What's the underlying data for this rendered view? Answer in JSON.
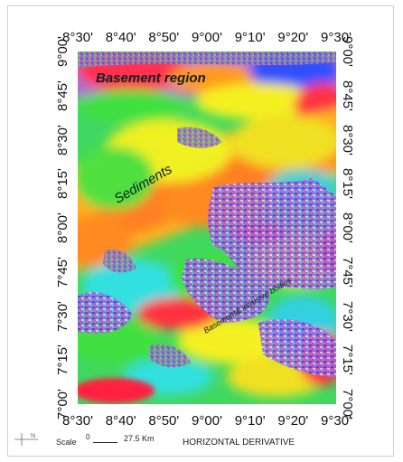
{
  "map": {
    "x_ticks": [
      "8°30'",
      "8°40'",
      "8°50'",
      "9°00'",
      "9°10'",
      "9°20'",
      "9°30'"
    ],
    "y_ticks": [
      "9°00'",
      "8°45'",
      "8°30'",
      "8°15'",
      "8°00'",
      "7°45'",
      "7°30'",
      "7°15'",
      "7°00'"
    ],
    "annotations": {
      "basement_region": "Basement region",
      "sediments": "Sediments",
      "intrusive": "Basement& intrusive bodies"
    }
  },
  "footer": {
    "scale_label": "Scale",
    "scale_zero": "0",
    "scale_value": "27.5 Km",
    "title": "HORIZONTAL DERIVATIVE",
    "north_label": "N"
  },
  "colors": {
    "red": "#ff2030",
    "orange": "#ff9a1a",
    "yellow": "#f5f020",
    "green": "#40e040",
    "cyan": "#30e0e0",
    "blue": "#3050ff",
    "purple": "#b070d0"
  }
}
